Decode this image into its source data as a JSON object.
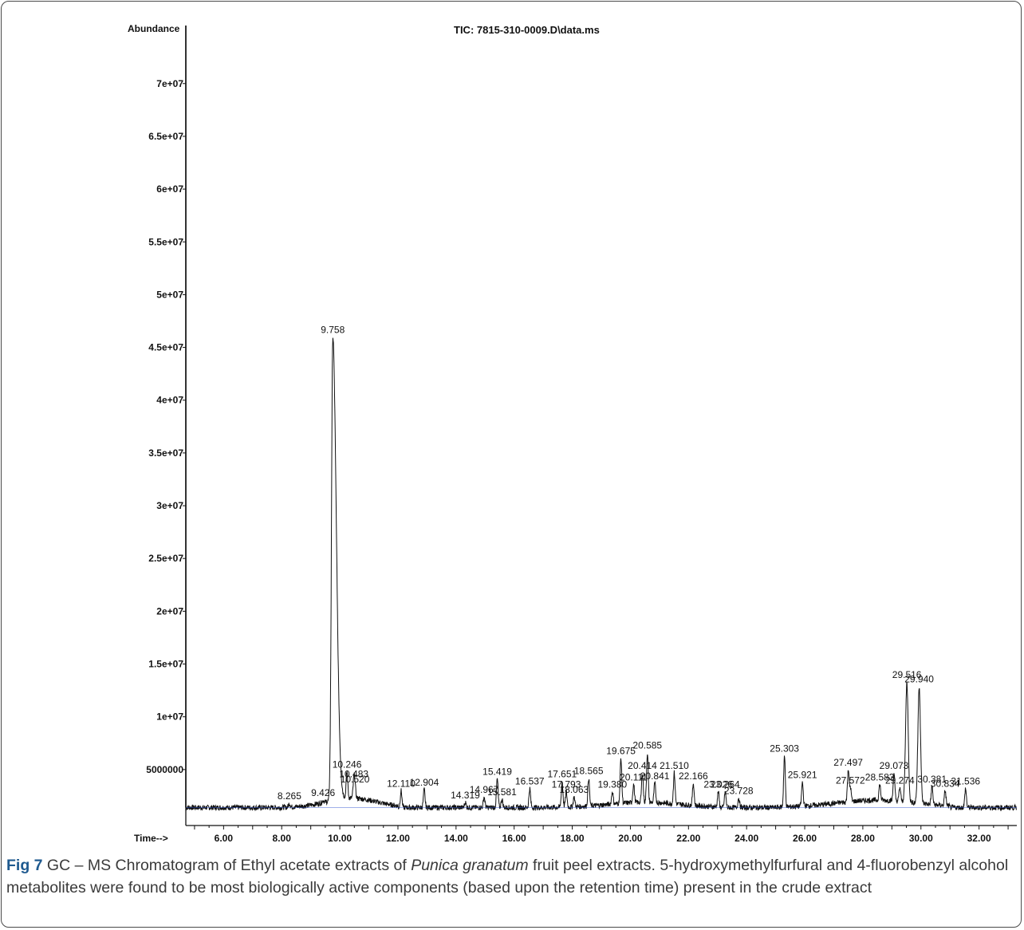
{
  "chart_data": {
    "type": "line",
    "title": "TIC: 7815-310-0009.D\\data.ms",
    "ylabel": "Abundance",
    "xlabel": "Time-->",
    "x_ticks": [
      "6.00",
      "8.00",
      "10.00",
      "12.00",
      "14.00",
      "16.00",
      "18.00",
      "20.00",
      "22.00",
      "24.00",
      "26.00",
      "28.00",
      "30.00",
      "32.00"
    ],
    "x_tick_values": [
      6,
      8,
      10,
      12,
      14,
      16,
      18,
      20,
      22,
      24,
      26,
      28,
      30,
      32
    ],
    "y_ticks": [
      "5000000",
      "1e+07",
      "1.5e+07",
      "2e+07",
      "2.5e+07",
      "3e+07",
      "3.5e+07",
      "4e+07",
      "4.5e+07",
      "5e+07",
      "5.5e+07",
      "6e+07",
      "6.5e+07",
      "7e+07"
    ],
    "y_tick_values": [
      5000000,
      10000000,
      15000000,
      20000000,
      25000000,
      30000000,
      35000000,
      40000000,
      45000000,
      50000000,
      55000000,
      60000000,
      65000000,
      70000000
    ],
    "xlim": [
      4.7,
      33.3
    ],
    "ylim": [
      0,
      75500000
    ],
    "baseline": 1400000,
    "series": [
      {
        "peaks": [
          {
            "rt": 9.758,
            "abundance": 46000000,
            "label": "9.758"
          },
          {
            "rt": 10.246,
            "abundance": 4800000,
            "label": "10.246"
          },
          {
            "rt": 10.483,
            "abundance": 3900000,
            "label": "10.483"
          },
          {
            "rt": 10.52,
            "abundance": 3400000,
            "label": "10.520"
          },
          {
            "rt": 8.265,
            "abundance": 1800000,
            "label": "8.265"
          },
          {
            "rt": 9.426,
            "abundance": 2100000,
            "label": "9.426"
          },
          {
            "rt": 12.11,
            "abundance": 3000000,
            "label": "12.110"
          },
          {
            "rt": 12.904,
            "abundance": 3100000,
            "label": "12.904"
          },
          {
            "rt": 14.319,
            "abundance": 1900000,
            "label": "14.319"
          },
          {
            "rt": 14.967,
            "abundance": 2400000,
            "label": "14.967"
          },
          {
            "rt": 15.419,
            "abundance": 4100000,
            "label": "15.419"
          },
          {
            "rt": 15.581,
            "abundance": 2200000,
            "label": "15.581"
          },
          {
            "rt": 16.537,
            "abundance": 3200000,
            "label": "16.537"
          },
          {
            "rt": 17.651,
            "abundance": 3900000,
            "label": "17.651"
          },
          {
            "rt": 17.793,
            "abundance": 2900000,
            "label": "17.793"
          },
          {
            "rt": 18.063,
            "abundance": 2400000,
            "label": "18.063"
          },
          {
            "rt": 18.565,
            "abundance": 4200000,
            "label": "18.565"
          },
          {
            "rt": 19.38,
            "abundance": 2900000,
            "label": "19.380"
          },
          {
            "rt": 19.675,
            "abundance": 6100000,
            "label": "19.675"
          },
          {
            "rt": 20.111,
            "abundance": 3600000,
            "label": "20.111"
          },
          {
            "rt": 20.414,
            "abundance": 4700000,
            "label": "20.414"
          },
          {
            "rt": 20.585,
            "abundance": 6600000,
            "label": "20.585"
          },
          {
            "rt": 20.841,
            "abundance": 3700000,
            "label": "20.841"
          },
          {
            "rt": 21.51,
            "abundance": 4700000,
            "label": "21.510"
          },
          {
            "rt": 22.166,
            "abundance": 3700000,
            "label": "22.166"
          },
          {
            "rt": 23.026,
            "abundance": 2900000,
            "label": "23.026"
          },
          {
            "rt": 23.264,
            "abundance": 2900000,
            "label": "23.264"
          },
          {
            "rt": 23.728,
            "abundance": 2300000,
            "label": "23.728"
          },
          {
            "rt": 25.303,
            "abundance": 6300000,
            "label": "25.303"
          },
          {
            "rt": 25.921,
            "abundance": 3800000,
            "label": "25.921"
          },
          {
            "rt": 27.497,
            "abundance": 5000000,
            "label": "27.497"
          },
          {
            "rt": 27.572,
            "abundance": 3300000,
            "label": "27.572"
          },
          {
            "rt": 28.583,
            "abundance": 3600000,
            "label": "28.583"
          },
          {
            "rt": 29.073,
            "abundance": 4700000,
            "label": "29.073"
          },
          {
            "rt": 29.274,
            "abundance": 3300000,
            "label": "29.274"
          },
          {
            "rt": 29.516,
            "abundance": 13300000,
            "label": "29.516"
          },
          {
            "rt": 29.94,
            "abundance": 12900000,
            "label": "29.940"
          },
          {
            "rt": 30.381,
            "abundance": 3400000,
            "label": "30.381"
          },
          {
            "rt": 30.834,
            "abundance": 3000000,
            "label": "30.834"
          },
          {
            "rt": 31.536,
            "abundance": 3200000,
            "label": "31.536"
          }
        ]
      }
    ],
    "grid": false,
    "legend": "none"
  },
  "caption": {
    "label": "Fig 7",
    "text_before": " GC – MS Chromatogram of Ethyl acetate extracts of ",
    "species": "Punica granatum",
    "text_after": " fruit peel extracts. 5-hydroxymethylfurfural and 4-fluorobenzyl alcohol metabolites were found to be most biologically active components (based upon the retention time) present in the crude extract"
  }
}
